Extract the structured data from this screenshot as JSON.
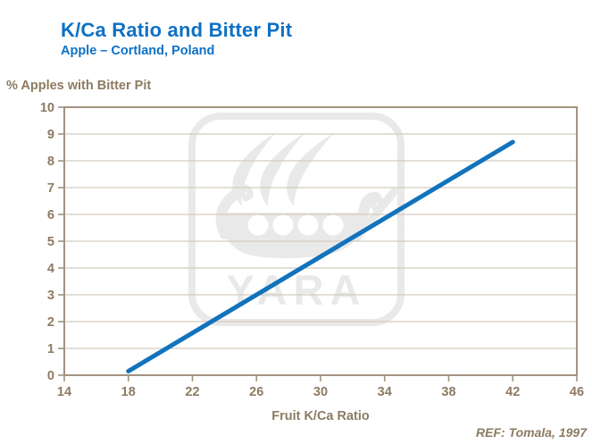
{
  "header": {
    "title": "K/Ca Ratio and Bitter Pit",
    "subtitle": "Apple – Cortland, Poland"
  },
  "watermark": {
    "brand": "YARA"
  },
  "footer": {
    "reference": "REF: Tomala, 1997"
  },
  "colors": {
    "title_blue": "#0e71c4",
    "line_blue": "#1173bc",
    "text_brown": "#8c7b63",
    "axis_line": "#a29380",
    "gridline": "#d4cbc1",
    "watermark": "#e9e9e9",
    "background": "#ffffff"
  },
  "chart_data": {
    "type": "line",
    "title": "K/Ca Ratio and Bitter Pit",
    "subtitle": "Apple – Cortland, Poland",
    "xlabel": "Fruit K/Ca Ratio",
    "ylabel": "% Apples with Bitter Pit",
    "xlim": [
      14,
      46
    ],
    "ylim": [
      0,
      10
    ],
    "x_ticks": [
      14,
      18,
      22,
      26,
      30,
      34,
      38,
      42,
      46
    ],
    "y_ticks": [
      0,
      1,
      2,
      3,
      4,
      5,
      6,
      7,
      8,
      9,
      10
    ],
    "grid": "horizontal-only",
    "legend": "none",
    "series": [
      {
        "name": "% apples with bitter pit",
        "x": [
          18,
          42
        ],
        "y": [
          0.15,
          8.7
        ]
      }
    ],
    "annotation": "REF: Tomala, 1997"
  }
}
